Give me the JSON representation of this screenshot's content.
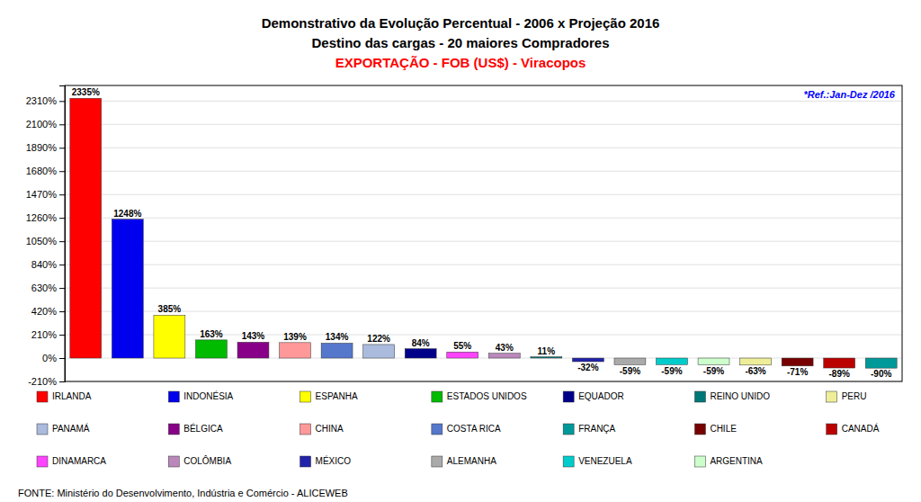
{
  "chart_data": {
    "type": "bar",
    "title": "Demonstrativo da Evolução Percentual - 2006 x Projeção 2016",
    "subtitle": "Destino das cargas - 20 maiores Compradores",
    "annotations": [
      {
        "text": "EXPORTAÇÃO - FOB (US$) - Viracopos",
        "color": "red"
      },
      {
        "text": "*Ref.:Jan-Dez /2016",
        "color": "blue"
      },
      {
        "text": "FONTE: Ministério do Desenvolvimento, Indústria e Comércio - ALICEWEB"
      }
    ],
    "categories": [
      "IRLANDA",
      "INDONÉSIA",
      "ESPANHA",
      "ESTADOS UNIDOS",
      "BÉLGICA",
      "CHINA",
      "COSTA RICA",
      "PANAMÁ",
      "EQUADOR",
      "DINAMARCA",
      "COLÔMBIA",
      "REINO UNIDO",
      "MÉXICO",
      "ALEMANHA",
      "VENEZUELA",
      "ARGENTINA",
      "PERU",
      "CHILE",
      "CANADÁ",
      "FRANÇA"
    ],
    "values": [
      2335,
      1248,
      385,
      163,
      143,
      139,
      134,
      122,
      84,
      55,
      43,
      11,
      -32,
      -59,
      -59,
      -59,
      -63,
      -71,
      -89,
      -90
    ],
    "value_labels": [
      "2335%",
      "1248%",
      "385%",
      "163%",
      "143%",
      "139%",
      "134%",
      "122%",
      "84%",
      "55%",
      "43%",
      "11%",
      "-32%",
      "-59%",
      "-59%",
      "-59%",
      "-63%",
      "-71%",
      "-89%",
      "-90%"
    ],
    "colors": [
      "#FF0000",
      "#0000EE",
      "#FFFF00",
      "#00BB00",
      "#880088",
      "#FF9999",
      "#5577CC",
      "#AABBDD",
      "#000088",
      "#FF44FF",
      "#BB88BB",
      "#007777",
      "#2222AA",
      "#AAAAAA",
      "#00CCCC",
      "#CCFFCC",
      "#EEEE99",
      "#770000",
      "#BB0000",
      "#009999"
    ],
    "legend": "bottom",
    "legend_rows": [
      [
        "IRLANDA",
        "INDONÉSIA",
        "ESPANHA",
        "ESTADOS UNIDOS",
        "EQUADOR",
        "REINO UNIDO",
        "PERU"
      ],
      [
        "PANAMÁ",
        "BÉLGICA",
        "CHINA",
        "COSTA RICA",
        "FRANÇA",
        "CHILE",
        "CANADÁ"
      ],
      [
        "DINAMARCA",
        "COLÔMBIA",
        "MÉXICO",
        "ALEMANHA",
        "VENEZUELA",
        "ARGENTINA"
      ]
    ],
    "ylim": [
      -210,
      2450
    ],
    "yticks": [
      {
        "value": -210,
        "label": "-210%"
      },
      {
        "value": 0,
        "label": "0%"
      },
      {
        "value": 210,
        "label": "210%"
      },
      {
        "value": 420,
        "label": "420%"
      },
      {
        "value": 630,
        "label": "630%"
      },
      {
        "value": 840,
        "label": "840%"
      },
      {
        "value": 1050,
        "label": "1050%"
      },
      {
        "value": 1260,
        "label": "1260%"
      },
      {
        "value": 1470,
        "label": "1470%"
      },
      {
        "value": 1680,
        "label": "1680%"
      },
      {
        "value": 1890,
        "label": "1890%"
      },
      {
        "value": 2100,
        "label": "2100%"
      },
      {
        "value": 2310,
        "label": "2310%"
      }
    ],
    "grid": true,
    "data_labels": true,
    "tick_labels": "y"
  }
}
